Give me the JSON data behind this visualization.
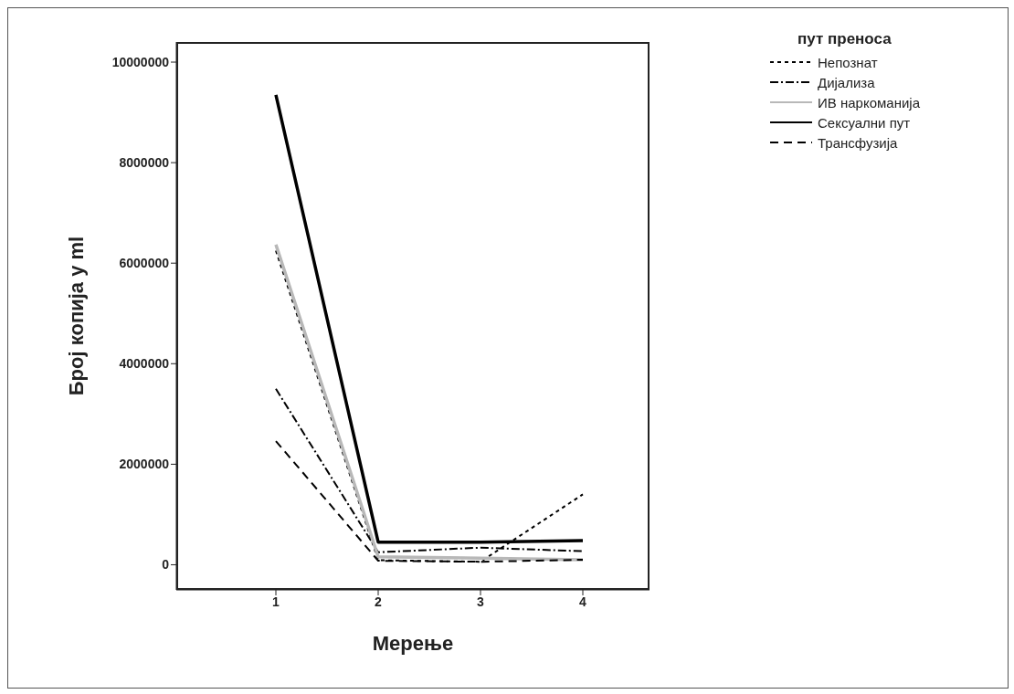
{
  "chart_data": {
    "type": "line",
    "xlabel": "Мерење",
    "ylabel": "Број копија у ml",
    "legend_title": "пут преноса",
    "categories": [
      "1",
      "2",
      "3",
      "4"
    ],
    "series": [
      {
        "name": "Непознат",
        "color": "#000000",
        "line_style": "dotted",
        "values": [
          6250000,
          90000,
          60000,
          1400000
        ]
      },
      {
        "name": "Дијализа",
        "color": "#000000",
        "line_style": "dashdot",
        "values": [
          3500000,
          250000,
          340000,
          270000
        ]
      },
      {
        "name": "ИВ наркоманија",
        "color": "#b8b8b8",
        "line_style": "solid",
        "values": [
          6370000,
          160000,
          130000,
          100000
        ]
      },
      {
        "name": "Сексуални пут",
        "color": "#000000",
        "line_style": "solid",
        "values": [
          9350000,
          450000,
          450000,
          480000
        ]
      },
      {
        "name": "Трансфузија",
        "color": "#000000",
        "line_style": "dashed",
        "values": [
          2460000,
          80000,
          60000,
          100000
        ]
      }
    ],
    "ylim": [
      -500000,
      10400000
    ],
    "yticks": [
      0,
      2000000,
      4000000,
      6000000,
      8000000,
      10000000
    ],
    "grid": false,
    "legend": "top right",
    "marker": "none"
  }
}
